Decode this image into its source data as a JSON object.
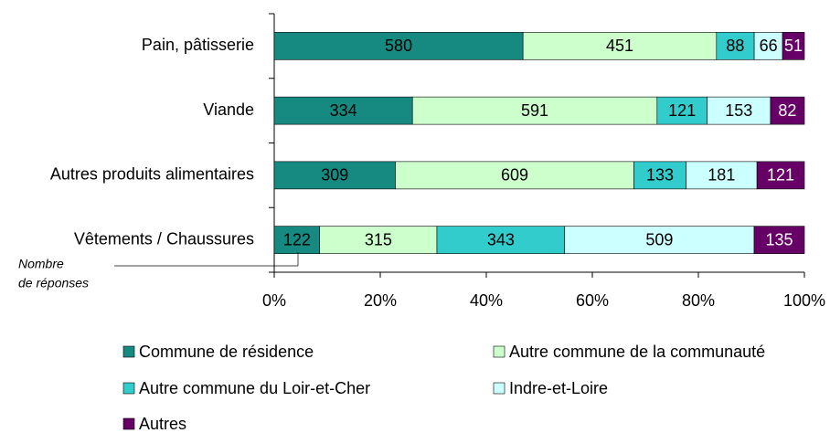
{
  "chart_data": {
    "type": "bar",
    "orientation": "horizontal",
    "stacked": "percent",
    "categories": [
      "Pain, pâtisserie",
      "Viande",
      "Autres produits alimentaires",
      "Vêtements / Chaussures"
    ],
    "series": [
      {
        "name": "Commune de résidence",
        "color": "#168a80",
        "values": [
          580,
          334,
          309,
          122
        ]
      },
      {
        "name": "Autre commune de la communauté",
        "color": "#ccffcc",
        "values": [
          451,
          591,
          609,
          315
        ]
      },
      {
        "name": "Autre commune du Loir-et-Cher",
        "color": "#33cccc",
        "values": [
          88,
          121,
          133,
          343
        ]
      },
      {
        "name": "Indre-et-Loire",
        "color": "#ccffff",
        "values": [
          66,
          153,
          181,
          509
        ]
      },
      {
        "name": "Autres",
        "color": "#660066",
        "values": [
          51,
          82,
          121,
          135
        ]
      }
    ],
    "xlim": [
      0,
      100
    ],
    "xticks": [
      {
        "value": 0,
        "label": "0%"
      },
      {
        "value": 20,
        "label": "20%"
      },
      {
        "value": 40,
        "label": "40%"
      },
      {
        "value": 60,
        "label": "60%"
      },
      {
        "value": 80,
        "label": "80%"
      },
      {
        "value": 100,
        "label": "100%"
      }
    ],
    "annotation": [
      "Nombre",
      "de réponses"
    ],
    "legend": "bottom"
  }
}
